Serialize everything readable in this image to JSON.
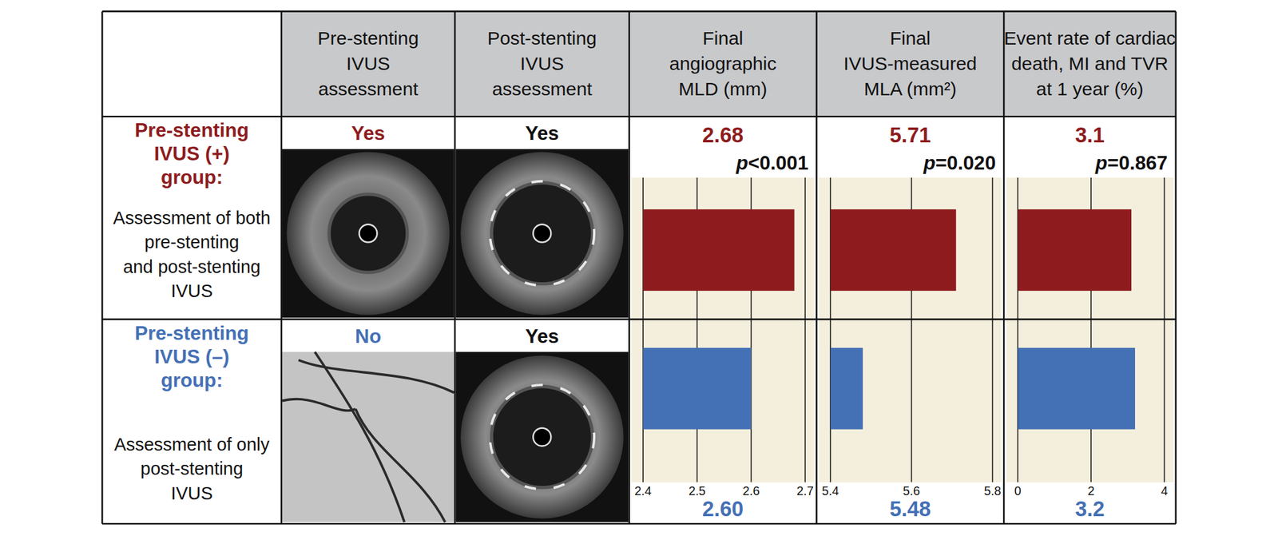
{
  "table": {
    "header": [
      "Pre-stenting\nIVUS\nassessment",
      "Post-stenting\nIVUS\nassessment"
    ],
    "rows": [
      {
        "group": "Pre-stenting\nIVUS (+)\ngroup:",
        "description": "Assessment of both\npre-stenting\nand post-stenting\nIVUS",
        "pre_stenting": "Yes",
        "post_stenting": "Yes"
      },
      {
        "group": "Pre-stenting\nIVUS (–)\ngroup:",
        "description": "Assessment of only\npost-stenting\nIVUS",
        "pre_stenting": "No",
        "post_stenting": "Yes"
      }
    ]
  },
  "chart_data": [
    {
      "type": "bar",
      "orientation": "horizontal",
      "title": "Final\nangiographic\nMLD (mm)",
      "categories": [
        null,
        null
      ],
      "values": [
        2.68,
        2.6
      ],
      "value_labels": [
        "2.68",
        "2.60"
      ],
      "data_labels": true,
      "colors": [
        "#8e1c1e",
        "#4470b5"
      ],
      "xlim": [
        2.4,
        2.7
      ],
      "xticks": [
        2.4,
        2.5,
        2.6,
        2.7
      ],
      "grid": true,
      "annotation": "p<0.001"
    },
    {
      "type": "bar",
      "orientation": "horizontal",
      "title": "Final\nIVUS-measured\nMLA (mm²)",
      "categories": [
        null,
        null
      ],
      "values": [
        5.71,
        5.48
      ],
      "data_labels": true,
      "colors": [
        "#8e1c1e",
        "#4470b5"
      ],
      "xlim": [
        5.4,
        5.8
      ],
      "xticks": [
        5.4,
        5.6,
        5.8
      ],
      "grid": true,
      "annotation": "p=0.020"
    },
    {
      "type": "bar",
      "orientation": "horizontal",
      "title": "Event rate of cardiac\ndeath, MI and TVR\nat 1 year (%)",
      "categories": [
        null,
        null
      ],
      "values": [
        3.1,
        3.2
      ],
      "data_labels": true,
      "colors": [
        "#8e1c1e",
        "#4470b5"
      ],
      "xlim": [
        0,
        4
      ],
      "xticks": [
        0,
        2,
        4
      ],
      "grid": true,
      "annotation": "p=0.867"
    }
  ]
}
